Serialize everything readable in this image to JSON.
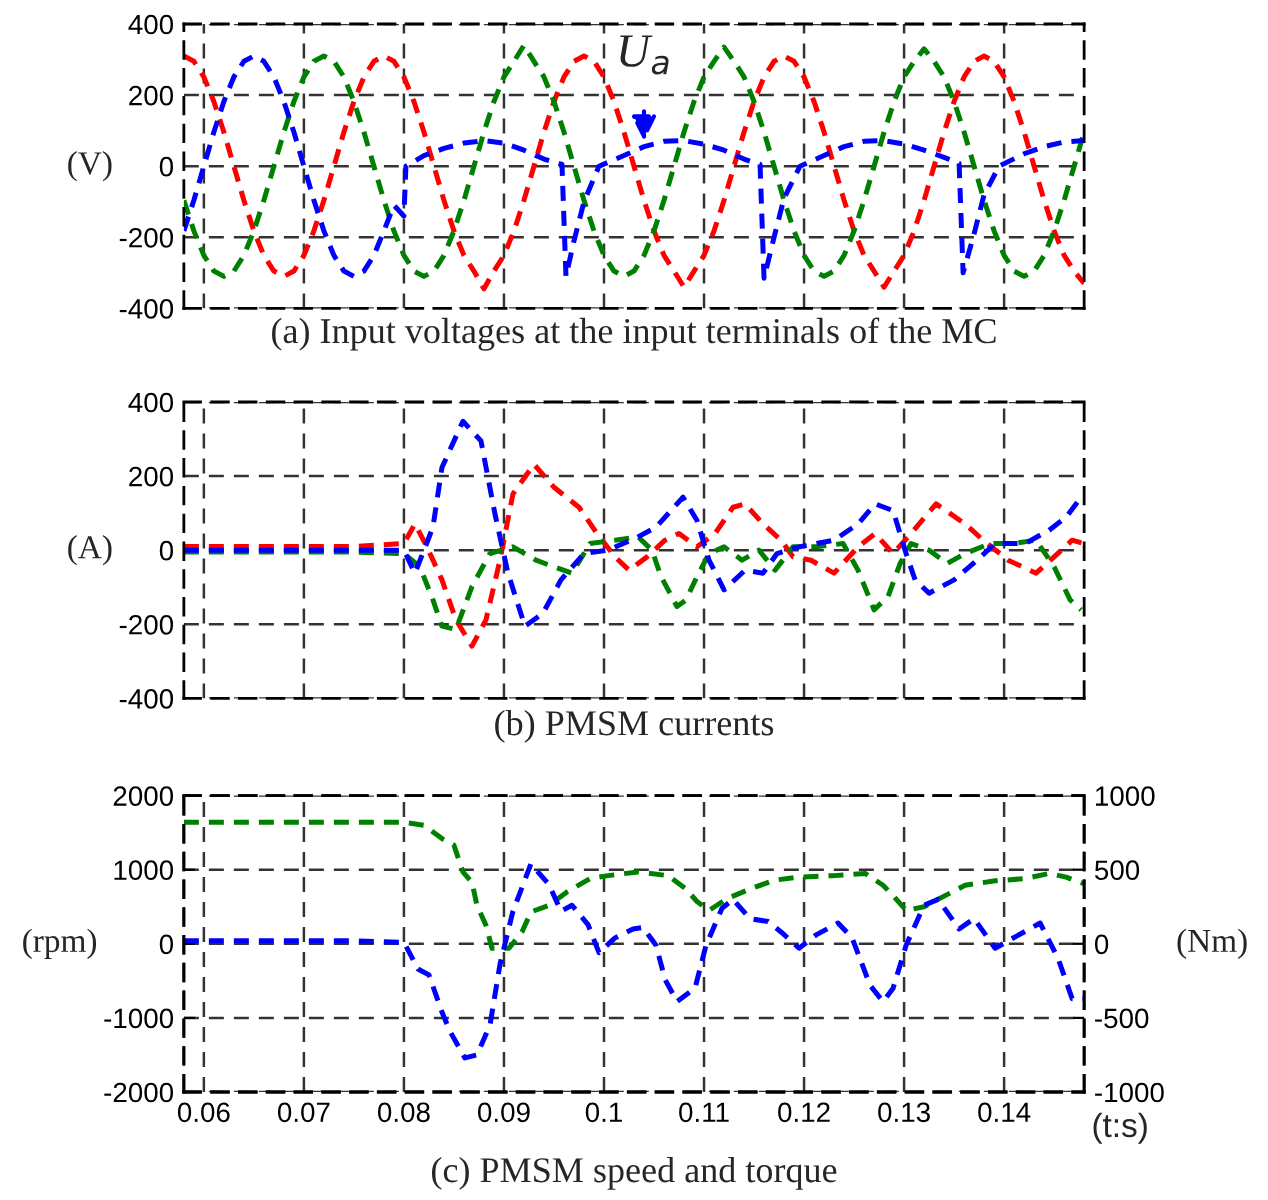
{
  "chart_data": [
    {
      "type": "line",
      "title": "(a) Input voltages at the input terminals of the MC",
      "ylabel": "(V)",
      "xlim": [
        0.058,
        0.148
      ],
      "xticks": [
        0.06,
        0.07,
        0.08,
        0.09,
        0.1,
        0.11,
        0.12,
        0.13,
        0.14
      ],
      "ylim": [
        -400,
        400
      ],
      "yticks": [
        -400,
        -200,
        0,
        200,
        400
      ],
      "grid": true,
      "line_style": "dashed",
      "tick_labels": "y",
      "annotations": [
        {
          "text": "U$_{a}$",
          "x": 0.104,
          "y": 55
        }
      ],
      "series": [
        {
          "color": "#ff0000",
          "x": [
            0.058,
            0.059,
            0.06,
            0.061,
            0.062,
            0.063,
            0.064,
            0.065,
            0.066,
            0.067,
            0.068,
            0.069,
            0.07,
            0.071,
            0.072,
            0.073,
            0.074,
            0.075,
            0.076,
            0.077,
            0.078,
            0.079,
            0.08,
            0.081,
            0.082,
            0.083,
            0.084,
            0.085,
            0.086,
            0.087,
            0.088,
            0.089,
            0.09,
            0.091,
            0.092,
            0.093,
            0.094,
            0.095,
            0.096,
            0.097,
            0.098,
            0.099,
            0.1,
            0.101,
            0.102,
            0.103,
            0.104,
            0.105,
            0.106,
            0.107,
            0.108,
            0.109,
            0.11,
            0.111,
            0.112,
            0.113,
            0.114,
            0.115,
            0.116,
            0.117,
            0.118,
            0.119,
            0.12,
            0.121,
            0.122,
            0.123,
            0.124,
            0.125,
            0.126,
            0.127,
            0.128,
            0.129,
            0.13,
            0.131,
            0.132,
            0.133,
            0.134,
            0.135,
            0.136,
            0.137,
            0.138,
            0.139,
            0.14,
            0.141,
            0.142,
            0.143,
            0.144,
            0.145,
            0.146,
            0.147,
            0.148
          ],
          "values": [
            310,
            295,
            251,
            182,
            96,
            0,
            -96,
            -182,
            -251,
            -295,
            -310,
            -295,
            -251,
            -182,
            -96,
            0,
            96,
            182,
            251,
            295,
            310,
            295,
            251,
            182,
            96,
            0,
            -96,
            -182,
            -251,
            -295,
            -345,
            -295,
            -251,
            -182,
            -96,
            0,
            96,
            182,
            251,
            295,
            310,
            295,
            251,
            182,
            96,
            0,
            -96,
            -182,
            -251,
            -295,
            -340,
            -295,
            -251,
            -182,
            -96,
            0,
            96,
            182,
            251,
            295,
            310,
            295,
            251,
            182,
            96,
            0,
            -96,
            -182,
            -251,
            -295,
            -340,
            -295,
            -251,
            -182,
            -96,
            0,
            96,
            182,
            251,
            295,
            310,
            295,
            251,
            182,
            96,
            0,
            -96,
            -182,
            -251,
            -295,
            -330
          ]
        },
        {
          "color": "#008000",
          "x": [
            0.058,
            0.059,
            0.06,
            0.061,
            0.062,
            0.063,
            0.064,
            0.065,
            0.066,
            0.067,
            0.068,
            0.069,
            0.07,
            0.071,
            0.072,
            0.073,
            0.074,
            0.075,
            0.076,
            0.077,
            0.078,
            0.079,
            0.08,
            0.081,
            0.082,
            0.083,
            0.084,
            0.085,
            0.086,
            0.087,
            0.088,
            0.089,
            0.09,
            0.091,
            0.092,
            0.093,
            0.094,
            0.095,
            0.096,
            0.097,
            0.098,
            0.099,
            0.1,
            0.101,
            0.102,
            0.103,
            0.104,
            0.105,
            0.106,
            0.107,
            0.108,
            0.109,
            0.11,
            0.111,
            0.112,
            0.113,
            0.114,
            0.115,
            0.116,
            0.117,
            0.118,
            0.119,
            0.12,
            0.121,
            0.122,
            0.123,
            0.124,
            0.125,
            0.126,
            0.127,
            0.128,
            0.129,
            0.13,
            0.131,
            0.132,
            0.133,
            0.134,
            0.135,
            0.136,
            0.137,
            0.138,
            0.139,
            0.14,
            0.141,
            0.142,
            0.143,
            0.144,
            0.145,
            0.146,
            0.147,
            0.148
          ],
          "values": [
            -96,
            -182,
            -251,
            -295,
            -310,
            -295,
            -251,
            -182,
            -96,
            0,
            96,
            182,
            251,
            295,
            310,
            295,
            251,
            182,
            96,
            0,
            -96,
            -182,
            -251,
            -295,
            -310,
            -295,
            -251,
            -182,
            -96,
            0,
            96,
            182,
            251,
            295,
            340,
            295,
            251,
            182,
            96,
            0,
            -96,
            -182,
            -251,
            -295,
            -310,
            -295,
            -251,
            -182,
            -96,
            0,
            96,
            182,
            251,
            295,
            335,
            295,
            251,
            182,
            96,
            0,
            -96,
            -182,
            -251,
            -295,
            -310,
            -295,
            -251,
            -182,
            -96,
            0,
            96,
            182,
            251,
            295,
            330,
            295,
            251,
            182,
            96,
            0,
            -96,
            -182,
            -251,
            -295,
            -310,
            -295,
            -251,
            -182,
            -96,
            0,
            96
          ]
        },
        {
          "color": "#0000ff",
          "x": [
            0.058,
            0.059,
            0.06,
            0.061,
            0.062,
            0.063,
            0.064,
            0.065,
            0.066,
            0.067,
            0.068,
            0.069,
            0.07,
            0.071,
            0.072,
            0.073,
            0.074,
            0.075,
            0.076,
            0.077,
            0.078,
            0.079,
            0.08,
            0.0802,
            0.082,
            0.084,
            0.086,
            0.088,
            0.09,
            0.092,
            0.094,
            0.0958,
            0.0962,
            0.097,
            0.098,
            0.0995,
            0.102,
            0.104,
            0.106,
            0.108,
            0.11,
            0.112,
            0.114,
            0.1156,
            0.116,
            0.117,
            0.118,
            0.1196,
            0.122,
            0.124,
            0.126,
            0.128,
            0.13,
            0.132,
            0.134,
            0.1355,
            0.1359,
            0.137,
            0.138,
            0.1395,
            0.142,
            0.144,
            0.146,
            0.148
          ],
          "values": [
            -182,
            -96,
            0,
            96,
            182,
            251,
            295,
            310,
            295,
            251,
            182,
            96,
            0,
            -96,
            -182,
            -251,
            -295,
            -310,
            -295,
            -251,
            -182,
            -110,
            -140,
            0,
            30,
            50,
            65,
            72,
            65,
            45,
            20,
            5,
            -310,
            -210,
            -100,
            0,
            30,
            55,
            70,
            72,
            62,
            45,
            20,
            5,
            -315,
            -200,
            -90,
            0,
            30,
            55,
            70,
            72,
            62,
            45,
            25,
            8,
            -300,
            -190,
            -80,
            0,
            35,
            55,
            68,
            72
          ]
        }
      ]
    },
    {
      "type": "line",
      "title": "(b) PMSM currents",
      "ylabel": "(A)",
      "xlim": [
        0.058,
        0.148
      ],
      "xticks": [
        0.06,
        0.07,
        0.08,
        0.09,
        0.1,
        0.11,
        0.12,
        0.13,
        0.14
      ],
      "ylim": [
        -400,
        400
      ],
      "yticks": [
        -400,
        -200,
        0,
        200,
        400
      ],
      "grid": true,
      "line_style": "dashed",
      "tick_labels": "y",
      "series": [
        {
          "color": "#ff0000",
          "x": [
            0.058,
            0.065,
            0.07,
            0.075,
            0.08,
            0.0811,
            0.0823,
            0.0838,
            0.0852,
            0.0868,
            0.0882,
            0.0896,
            0.0909,
            0.093,
            0.095,
            0.0975,
            0.0993,
            0.1011,
            0.1025,
            0.1043,
            0.1061,
            0.1075,
            0.1093,
            0.1111,
            0.1129,
            0.1141,
            0.1159,
            0.1177,
            0.1189,
            0.1207,
            0.123,
            0.1254,
            0.1271,
            0.1289,
            0.1307,
            0.1332,
            0.1361,
            0.1379,
            0.1404,
            0.1432,
            0.145,
            0.1468,
            0.148
          ],
          "values": [
            10,
            10,
            10,
            10,
            18,
            71,
            9,
            -80,
            -188,
            -259,
            -188,
            -27,
            152,
            232,
            170,
            116,
            45,
            -18,
            -54,
            -18,
            27,
            45,
            9,
            45,
            116,
            125,
            71,
            27,
            -18,
            -27,
            -62,
            9,
            45,
            -9,
            45,
            125,
            71,
            27,
            -27,
            -62,
            -18,
            27,
            18
          ]
        },
        {
          "color": "#008000",
          "x": [
            0.058,
            0.065,
            0.07,
            0.075,
            0.08,
            0.0816,
            0.0829,
            0.0838,
            0.0852,
            0.0868,
            0.0886,
            0.0909,
            0.0932,
            0.095,
            0.0968,
            0.0986,
            0.1011,
            0.1034,
            0.1048,
            0.1057,
            0.1073,
            0.1082,
            0.1093,
            0.1105,
            0.112,
            0.1138,
            0.1155,
            0.1171,
            0.1189,
            0.1212,
            0.1239,
            0.1254,
            0.127,
            0.1284,
            0.1296,
            0.1307,
            0.1325,
            0.1343,
            0.1361,
            0.1386,
            0.1409,
            0.1432,
            0.145,
            0.1466,
            0.1477
          ],
          "values": [
            -5,
            -5,
            -5,
            -5,
            -9,
            -45,
            -134,
            -205,
            -214,
            -98,
            -9,
            9,
            -27,
            -45,
            -62,
            18,
            27,
            36,
            0,
            -71,
            -152,
            -134,
            -71,
            -9,
            9,
            -27,
            0,
            -54,
            9,
            9,
            18,
            -54,
            -161,
            -125,
            -36,
            18,
            0,
            -36,
            -9,
            18,
            18,
            27,
            -45,
            -134,
            -161
          ]
        },
        {
          "color": "#0000ff",
          "x": [
            0.058,
            0.065,
            0.07,
            0.075,
            0.08,
            0.0811,
            0.0829,
            0.0838,
            0.0859,
            0.0877,
            0.0891,
            0.0904,
            0.0921,
            0.0939,
            0.0957,
            0.098,
            0.1004,
            0.1034,
            0.1052,
            0.1079,
            0.1093,
            0.1105,
            0.112,
            0.1141,
            0.1159,
            0.1173,
            0.1195,
            0.123,
            0.1254,
            0.1271,
            0.1289,
            0.1302,
            0.1311,
            0.1325,
            0.135,
            0.1373,
            0.1391,
            0.1421,
            0.1445,
            0.1462,
            0.1477
          ],
          "values": [
            0,
            0,
            0,
            0,
            0,
            -62,
            62,
            223,
            348,
            295,
            98,
            -62,
            -205,
            -170,
            -80,
            -9,
            0,
            36,
            62,
            143,
            80,
            -27,
            -107,
            -54,
            -62,
            -9,
            9,
            27,
            71,
            125,
            107,
            -9,
            -80,
            -116,
            -80,
            -27,
            18,
            18,
            54,
            89,
            143
          ]
        }
      ]
    },
    {
      "type": "line",
      "title": "(c) PMSM speed and torque",
      "ylabel": "(rpm)",
      "y2label": "(Nm)",
      "xlabel": "(t:s)",
      "xlim": [
        0.058,
        0.148
      ],
      "xticks": [
        0.06,
        0.07,
        0.08,
        0.09,
        0.1,
        0.11,
        0.12,
        0.13,
        0.14
      ],
      "ylim": [
        -2000,
        2000
      ],
      "yticks": [
        -2000,
        -1000,
        0,
        1000,
        2000
      ],
      "y2lim": [
        -1000,
        1000
      ],
      "y2ticks": [
        -1000,
        -500,
        0,
        500,
        1000
      ],
      "grid": true,
      "line_style": "dashed",
      "series": [
        {
          "color": "#008000",
          "axis": "y",
          "x": [
            0.058,
            0.065,
            0.07,
            0.075,
            0.08,
            0.082,
            0.0838,
            0.085,
            0.0859,
            0.0868,
            0.0873,
            0.0882,
            0.0888,
            0.0905,
            0.0918,
            0.0927,
            0.0945,
            0.0963,
            0.0986,
            0.1004,
            0.1034,
            0.1064,
            0.1082,
            0.1093,
            0.1105,
            0.1123,
            0.1146,
            0.1171,
            0.1195,
            0.123,
            0.1261,
            0.1279,
            0.1289,
            0.1302,
            0.132,
            0.1341,
            0.1361,
            0.1391,
            0.1421,
            0.1445,
            0.1462,
            0.148
          ],
          "values": [
            1640,
            1640,
            1640,
            1640,
            1640,
            1600,
            1420,
            1330,
            970,
            830,
            520,
            250,
            -60,
            -60,
            160,
            430,
            520,
            700,
            880,
            920,
            970,
            920,
            740,
            570,
            450,
            610,
            740,
            860,
            900,
            920,
            950,
            790,
            650,
            450,
            500,
            650,
            790,
            850,
            880,
            950,
            900,
            810
          ]
        },
        {
          "color": "#0000ff",
          "axis": "y2",
          "x": [
            0.058,
            0.065,
            0.07,
            0.075,
            0.08,
            0.0814,
            0.0825,
            0.0838,
            0.0846,
            0.0861,
            0.0873,
            0.0886,
            0.0896,
            0.0909,
            0.0927,
            0.0945,
            0.0957,
            0.0968,
            0.0984,
            0.0995,
            0.1011,
            0.1029,
            0.1039,
            0.1052,
            0.1061,
            0.1073,
            0.1091,
            0.1102,
            0.1118,
            0.1129,
            0.1146,
            0.1164,
            0.1177,
            0.1195,
            0.1212,
            0.1234,
            0.1248,
            0.1266,
            0.1279,
            0.1289,
            0.1302,
            0.132,
            0.1334,
            0.1355,
            0.137,
            0.1391,
            0.1412,
            0.1436,
            0.1454,
            0.1468,
            0.148
          ],
          "values": [
            20,
            20,
            20,
            20,
            10,
            -170,
            -210,
            -460,
            -590,
            -770,
            -750,
            -550,
            -140,
            220,
            540,
            400,
            220,
            260,
            130,
            -60,
            40,
            100,
            110,
            -10,
            -240,
            -390,
            -300,
            -10,
            240,
            300,
            170,
            150,
            80,
            -30,
            60,
            140,
            40,
            -280,
            -390,
            -300,
            -10,
            260,
            300,
            100,
            170,
            -30,
            50,
            140,
            -100,
            -370,
            -370
          ]
        }
      ]
    }
  ]
}
